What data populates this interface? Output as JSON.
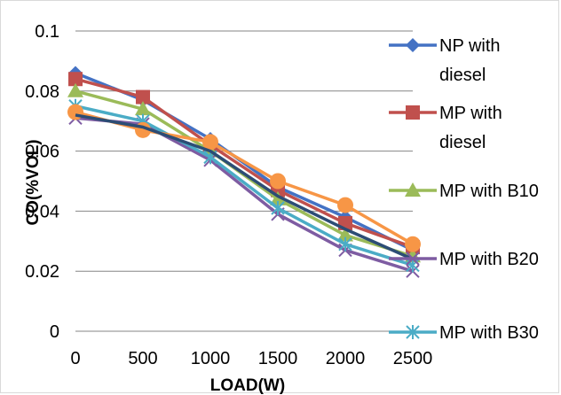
{
  "chart_data": {
    "type": "line",
    "title": "",
    "xlabel": "LOAD(W)",
    "ylabel": "CO(%VOL)",
    "x": [
      0,
      500,
      1000,
      1500,
      2000,
      2500
    ],
    "ylim": [
      0,
      0.1
    ],
    "yticks": [
      "0",
      "0.02",
      "0.04",
      "0.06",
      "0.08",
      "0.1"
    ],
    "grid": true,
    "legend_position": "right",
    "series": [
      {
        "name_lines": [
          "NP with",
          "diesel"
        ],
        "values": [
          0.086,
          0.077,
          0.064,
          0.048,
          0.038,
          0.027
        ],
        "color": "#4472C4",
        "marker": "diamond"
      },
      {
        "name_lines": [
          "MP with",
          "diesel"
        ],
        "values": [
          0.084,
          0.078,
          0.062,
          0.047,
          0.036,
          0.028
        ],
        "color": "#C0504D",
        "marker": "square"
      },
      {
        "name_lines": [
          "MP with B10"
        ],
        "values": [
          0.08,
          0.074,
          0.06,
          0.044,
          0.032,
          0.025
        ],
        "color": "#9BBB59",
        "marker": "triangle"
      },
      {
        "name_lines": [
          "MP with B20"
        ],
        "values": [
          0.071,
          0.069,
          0.057,
          0.039,
          0.027,
          0.02
        ],
        "color": "#7E5CA2",
        "marker": "x"
      },
      {
        "name_lines": [
          "MP with B30"
        ],
        "values": [
          0.075,
          0.07,
          0.058,
          0.041,
          0.029,
          0.022
        ],
        "color": "#4BACC6",
        "marker": "asterisk"
      },
      {
        "name_lines": [],
        "values": [
          0.073,
          0.067,
          0.063,
          0.05,
          0.042,
          0.029
        ],
        "color": "#F79646",
        "marker": "circle"
      },
      {
        "name_lines": [],
        "values": [
          0.072,
          0.068,
          0.06,
          0.045,
          0.034,
          0.024
        ],
        "color": "#2C4D75",
        "marker": "none"
      }
    ]
  }
}
